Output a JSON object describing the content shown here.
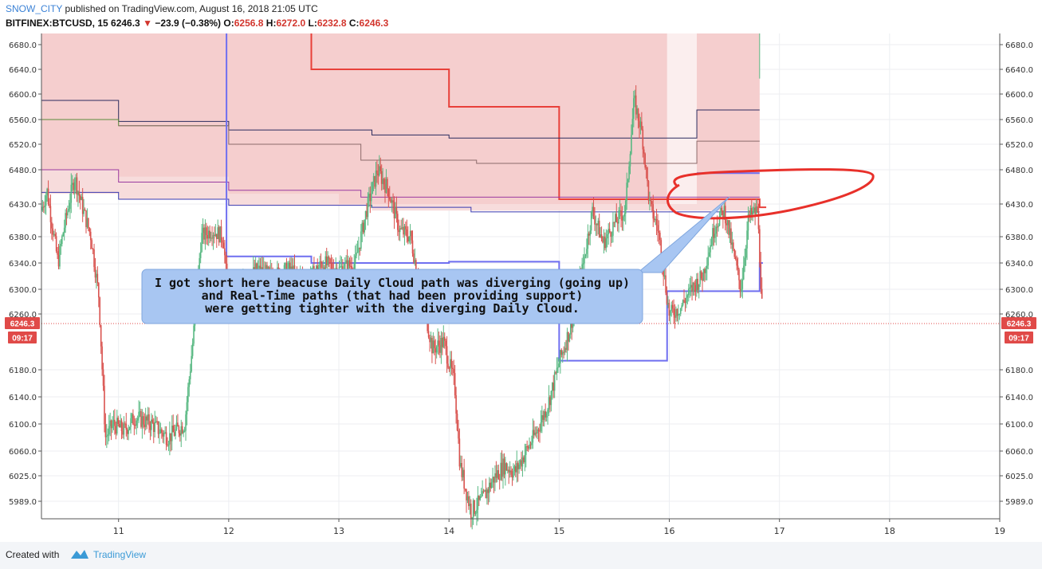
{
  "header": {
    "author": "SNOW_CITY",
    "published": "published on TradingView.com, August 16, 2018 21:05 UTC",
    "symbol": "BITFINEX:BTCUSD, 15",
    "last": "6246.3",
    "change": "−23.9 (−0.38%)",
    "o_label": "O:",
    "o": "6256.8",
    "h_label": "H:",
    "h": "6272.0",
    "l_label": "L:",
    "l": "6232.8",
    "c_label": "C:",
    "c": "6246.3"
  },
  "footer": {
    "created": "Created with",
    "brand": "TradingView"
  },
  "colors": {
    "up": "#58b882",
    "down": "#d9534f",
    "cloud": "#f2b8b8",
    "kijun": "#e8403a",
    "tenkan": "#6f6ff0",
    "price_badge": "#e04a48"
  },
  "chart_data": {
    "type": "candlestick",
    "title": "",
    "xlabel": "",
    "ylabel": "",
    "ylim": [
      5965,
      6695
    ],
    "xlim": [
      10.3,
      19
    ],
    "yticks": [
      "6680.0",
      "6640.0",
      "6600.0",
      "6560.0",
      "6520.0",
      "6480.0",
      "6430.0",
      "6380.0",
      "6340.0",
      "6300.0",
      "6260.0",
      "6180.0",
      "6140.0",
      "6100.0",
      "6060.0",
      "6025.0",
      "5989.0"
    ],
    "ytick_values": [
      6680,
      6640,
      6600,
      6560,
      6520,
      6480,
      6430,
      6380,
      6340,
      6300,
      6260,
      6180,
      6140,
      6100,
      6060,
      6025,
      5989
    ],
    "xticks": [
      "11",
      "12",
      "13",
      "14",
      "15",
      "16",
      "17",
      "18",
      "19"
    ],
    "xtick_values": [
      11,
      12,
      13,
      14,
      15,
      16,
      17,
      18,
      19
    ],
    "last_price": "6246.3",
    "countdown": "09:17",
    "price_path": [
      [
        10.3,
        6420
      ],
      [
        10.35,
        6450
      ],
      [
        10.45,
        6340
      ],
      [
        10.5,
        6390
      ],
      [
        10.6,
        6470
      ],
      [
        10.68,
        6420
      ],
      [
        10.75,
        6380
      ],
      [
        10.82,
        6290
      ],
      [
        10.88,
        6080
      ],
      [
        10.95,
        6100
      ],
      [
        11.05,
        6090
      ],
      [
        11.15,
        6110
      ],
      [
        11.3,
        6100
      ],
      [
        11.45,
        6080
      ],
      [
        11.6,
        6100
      ],
      [
        11.68,
        6230
      ],
      [
        11.75,
        6380
      ],
      [
        11.85,
        6390
      ],
      [
        11.95,
        6380
      ],
      [
        12.0,
        6270
      ],
      [
        12.1,
        6300
      ],
      [
        12.25,
        6330
      ],
      [
        12.4,
        6320
      ],
      [
        12.55,
        6330
      ],
      [
        12.7,
        6310
      ],
      [
        12.85,
        6340
      ],
      [
        13.0,
        6330
      ],
      [
        13.15,
        6340
      ],
      [
        13.25,
        6420
      ],
      [
        13.35,
        6480
      ],
      [
        13.45,
        6450
      ],
      [
        13.55,
        6390
      ],
      [
        13.65,
        6380
      ],
      [
        13.75,
        6290
      ],
      [
        13.85,
        6210
      ],
      [
        13.95,
        6220
      ],
      [
        14.05,
        6160
      ],
      [
        14.1,
        6040
      ],
      [
        14.2,
        5975
      ],
      [
        14.3,
        5990
      ],
      [
        14.4,
        6020
      ],
      [
        14.5,
        6040
      ],
      [
        14.6,
        6030
      ],
      [
        14.7,
        6060
      ],
      [
        14.8,
        6090
      ],
      [
        14.9,
        6130
      ],
      [
        15.0,
        6190
      ],
      [
        15.1,
        6240
      ],
      [
        15.2,
        6320
      ],
      [
        15.3,
        6420
      ],
      [
        15.4,
        6370
      ],
      [
        15.5,
        6400
      ],
      [
        15.6,
        6420
      ],
      [
        15.68,
        6590
      ],
      [
        15.75,
        6540
      ],
      [
        15.82,
        6430
      ],
      [
        15.9,
        6390
      ],
      [
        16.0,
        6260
      ],
      [
        16.1,
        6270
      ],
      [
        16.2,
        6300
      ],
      [
        16.3,
        6320
      ],
      [
        16.42,
        6400
      ],
      [
        16.5,
        6420
      ],
      [
        16.6,
        6340
      ],
      [
        16.65,
        6300
      ],
      [
        16.72,
        6410
      ],
      [
        16.8,
        6420
      ],
      [
        16.85,
        6246
      ]
    ],
    "annotation_text": [
      "I got short here beacuse Daily Cloud path was diverging (going up)",
      "and Real-Time paths (that had been providing support)",
      "were getting tighter with the diverging Daily Cloud."
    ]
  }
}
